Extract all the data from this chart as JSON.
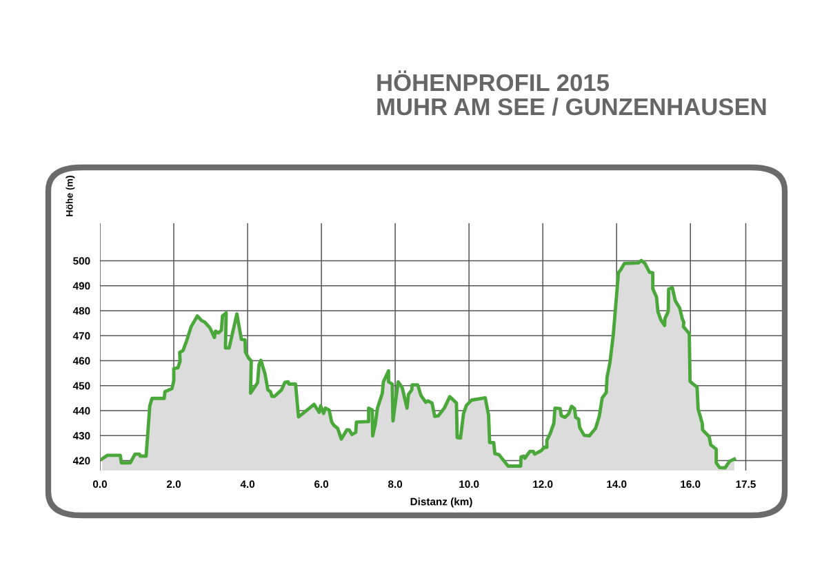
{
  "chart_data": {
    "type": "area",
    "title": "HÖHENPROFIL 2015",
    "subtitle": "MUHR AM SEE / GUNZENHAUSEN",
    "xlabel": "Distanz (km)",
    "ylabel": "Höhe (m)",
    "series": [
      {
        "color": "#4aa83a",
        "x": [
          0.06,
          0.2,
          0.55,
          0.58,
          0.82,
          0.95,
          1.07,
          1.09,
          1.25,
          1.35,
          1.41,
          1.74,
          1.76,
          1.95,
          2.0,
          2.0,
          2.11,
          2.17,
          2.16,
          2.25,
          2.34,
          2.47,
          2.64,
          2.75,
          2.84,
          2.98,
          3.1,
          3.13,
          3.21,
          3.29,
          3.32,
          3.42,
          3.4,
          3.5,
          3.71,
          3.83,
          3.93,
          3.94,
          4.02,
          4.1,
          4.08,
          4.27,
          4.31,
          4.36,
          4.47,
          4.55,
          4.62,
          4.66,
          4.73,
          4.92,
          5.01,
          5.1,
          5.12,
          5.3,
          5.38,
          5.66,
          5.8,
          5.94,
          5.98,
          6.06,
          6.11,
          6.21,
          6.28,
          6.34,
          6.44,
          6.54,
          6.69,
          6.75,
          6.83,
          6.93,
          6.95,
          7.28,
          7.28,
          7.38,
          7.39,
          7.46,
          7.52,
          7.65,
          7.68,
          7.82,
          7.82,
          7.92,
          7.94,
          8.08,
          8.19,
          8.32,
          8.36,
          8.45,
          8.46,
          8.61,
          8.7,
          8.83,
          8.89,
          9.0,
          9.07,
          9.17,
          9.33,
          9.48,
          9.66,
          9.68,
          9.77,
          9.85,
          9.93,
          10.07,
          10.44,
          10.53,
          10.56,
          10.67,
          10.7,
          10.81,
          11.06,
          11.4,
          11.41,
          11.48,
          11.51,
          11.65,
          11.74,
          11.78,
          11.96,
          12.04,
          12.11,
          12.11,
          12.2,
          12.3,
          12.33,
          12.47,
          12.5,
          12.6,
          12.7,
          12.78,
          12.86,
          12.89,
          12.97,
          13.0,
          13.12,
          13.26,
          13.43,
          13.53,
          13.61,
          13.72,
          13.74,
          13.82,
          13.91,
          14.05,
          14.11,
          14.21,
          14.59,
          14.67,
          14.77,
          14.89,
          14.98,
          14.98,
          15.08,
          15.12,
          15.2,
          15.3,
          15.31,
          15.4,
          15.41,
          15.51,
          15.59,
          15.71,
          15.78,
          15.82,
          15.81,
          15.89,
          15.97,
          15.99,
          16.05,
          16.18,
          16.21,
          16.32,
          16.33,
          16.51,
          16.55,
          16.7,
          16.7,
          16.79,
          16.94,
          17.06,
          17.19
        ],
        "values": [
          420.7,
          422.1,
          422.1,
          419.1,
          419.1,
          422.6,
          422.6,
          421.8,
          421.8,
          441.9,
          444.9,
          444.9,
          447.6,
          448.8,
          452,
          456.8,
          457.1,
          459.8,
          463.3,
          464,
          467.6,
          473.6,
          477.9,
          476.1,
          475.4,
          473.1,
          469.3,
          471.8,
          471.1,
          472.2,
          477.9,
          479.1,
          465.1,
          465.1,
          478.7,
          468.6,
          468.3,
          463.5,
          461.2,
          459.8,
          447,
          451.1,
          458.4,
          460.1,
          454.8,
          448.3,
          447.6,
          445.7,
          445.7,
          448.3,
          451.3,
          451.5,
          450.6,
          450.6,
          437.5,
          440.8,
          442.5,
          439.3,
          441.9,
          438.9,
          441,
          440.2,
          435.4,
          434.1,
          432.9,
          428.6,
          432.3,
          432.3,
          430.4,
          431.3,
          435.4,
          435.6,
          441,
          440.2,
          429.9,
          434.5,
          441,
          446.9,
          451.5,
          455.9,
          451.5,
          450.6,
          435.9,
          451.5,
          449.2,
          441,
          446.5,
          448.3,
          450.3,
          450.3,
          446,
          443.3,
          443.9,
          443,
          437.7,
          437.9,
          441,
          445.6,
          443,
          429.2,
          429,
          438.7,
          442.1,
          444.2,
          445.1,
          438.2,
          427.2,
          427.2,
          422.8,
          422.4,
          417.8,
          417.8,
          421.5,
          421.8,
          420.9,
          423.7,
          423.7,
          422.6,
          424,
          425.3,
          425.3,
          428.1,
          430.8,
          435,
          441,
          440.8,
          438,
          437.3,
          438.7,
          441.7,
          440.8,
          437.3,
          436.6,
          433.2,
          430.1,
          429.9,
          432.9,
          437.7,
          445.1,
          447.2,
          453.3,
          459.3,
          470.3,
          495.2,
          496.3,
          498.9,
          499.1,
          500.1,
          498.9,
          495.4,
          495.2,
          488.8,
          485.5,
          479.6,
          476.3,
          474.1,
          476.8,
          479.8,
          488.6,
          489.2,
          484,
          481,
          476.8,
          475.4,
          473.6,
          472.2,
          470.8,
          451.8,
          450.9,
          449.4,
          440.5,
          435,
          432.3,
          429.5,
          426.3,
          424.6,
          419.1,
          417.2,
          417.1,
          419.7,
          420.6
        ]
      }
    ],
    "xlim": [
      0,
      18.5
    ],
    "ylim": [
      416,
      515
    ],
    "xticks": [
      {
        "value": 0,
        "label": "0.0"
      },
      {
        "value": 2,
        "label": "2.0"
      },
      {
        "value": 4,
        "label": "4.0"
      },
      {
        "value": 6,
        "label": "6.0"
      },
      {
        "value": 8,
        "label": "8.0"
      },
      {
        "value": 10,
        "label": "10.0"
      },
      {
        "value": 12,
        "label": "12.0"
      },
      {
        "value": 14,
        "label": "14.0"
      },
      {
        "value": 16,
        "label": "16.0"
      },
      {
        "value": 17.5,
        "label": "17.5"
      }
    ],
    "yticks": [
      420,
      430,
      440,
      450,
      460,
      470,
      480,
      490,
      500
    ],
    "grid": true,
    "legend": false
  }
}
